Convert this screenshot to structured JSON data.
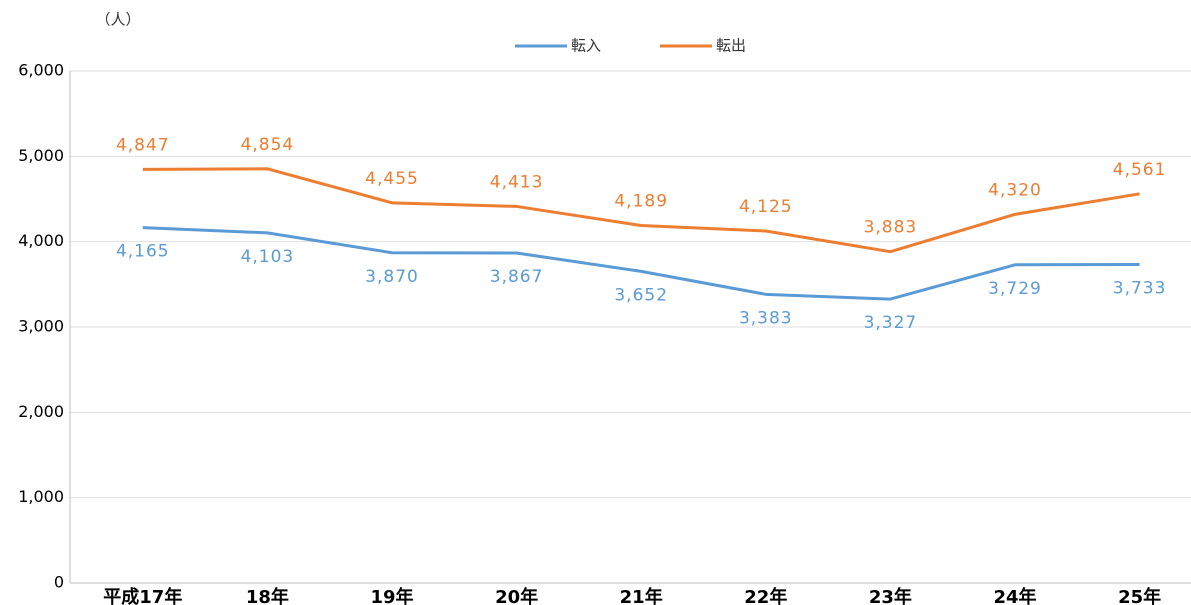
{
  "chart_data": {
    "type": "line",
    "y_unit_label": "（人）",
    "categories": [
      "平成17年",
      "18年",
      "19年",
      "20年",
      "21年",
      "22年",
      "23年",
      "24年",
      "25年"
    ],
    "series": [
      {
        "name": "転入",
        "color": "#5b9bd5",
        "values": [
          4165,
          4103,
          3870,
          3867,
          3652,
          3383,
          3327,
          3729,
          3733
        ],
        "value_labels": [
          "4,165",
          "4,103",
          "3,870",
          "3,867",
          "3,652",
          "3,383",
          "3,327",
          "3,729",
          "3,733"
        ],
        "label_position": "below"
      },
      {
        "name": "転出",
        "color": "#ed7d31",
        "values": [
          4847,
          4854,
          4455,
          4413,
          4189,
          4125,
          3883,
          4320,
          4561
        ],
        "value_labels": [
          "4,847",
          "4,854",
          "4,455",
          "4,413",
          "4,189",
          "4,125",
          "3,883",
          "4,320",
          "4,561"
        ],
        "label_position": "above"
      }
    ],
    "ylim": [
      0,
      6000
    ],
    "yticks": [
      0,
      {
        "value": 1000,
        "label": "1,000"
      },
      {
        "value": 2000,
        "label": "2,000"
      },
      {
        "value": 3000,
        "label": "3,000"
      },
      {
        "value": 4000,
        "label": "4,000"
      },
      {
        "value": 5000,
        "label": "5,000"
      },
      {
        "value": 6000,
        "label": "6,000"
      }
    ],
    "grid": true,
    "legend": "top"
  }
}
